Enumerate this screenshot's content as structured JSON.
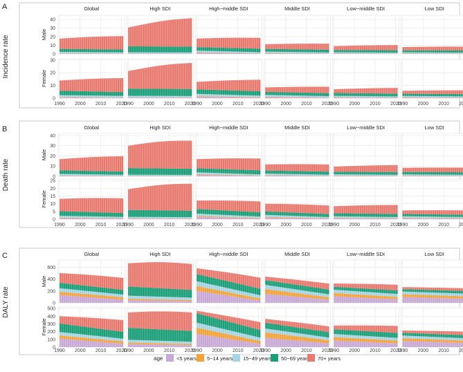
{
  "figure": {
    "x_ticks": [
      1990,
      2000,
      2010,
      2020
    ],
    "strip_labels": [
      "Global",
      "High SDI",
      "High−middle SDI",
      "Middle SDI",
      "Low−middle SDI",
      "Low SDI"
    ],
    "sex_labels": [
      "Male",
      "Female"
    ]
  },
  "legend": {
    "title": "age",
    "entries": [
      {
        "label": "<5 years",
        "color": "#C8A9D6"
      },
      {
        "label": "5−14 years",
        "color": "#F2A33A"
      },
      {
        "label": "15−49 years",
        "color": "#A6D4E3"
      },
      {
        "label": "50−69 years",
        "color": "#1A9E77"
      },
      {
        "label": "70+ years",
        "color": "#E8796F"
      }
    ]
  },
  "chart_data": [
    {
      "type": "bar",
      "stacked": true,
      "panel_letter": "A",
      "ylabel": "Incidence rate",
      "x": [
        1990,
        2021
      ],
      "male": {
        "y_ticks": [
          0,
          10,
          20,
          30,
          40
        ],
        "ylim": [
          0,
          45
        ],
        "regions": [
          {
            "name": "Global",
            "s": [
              [
                0.6,
                0.4
              ],
              [
                0.3,
                0.2
              ],
              [
                1.5,
                1.2
              ],
              [
                3.5,
                3.4
              ],
              [
                12,
                15.5
              ]
            ]
          },
          {
            "name": "High SDI",
            "s": [
              [
                0.5,
                0.4
              ],
              [
                0.2,
                0.2
              ],
              [
                1.2,
                1.1
              ],
              [
                7,
                6.8
              ],
              [
                22,
                33
              ]
            ]
          },
          {
            "name": "High−middle SDI",
            "s": [
              [
                1.5,
                0.5
              ],
              [
                0.6,
                0.3
              ],
              [
                1.8,
                1.2
              ],
              [
                4,
                4.2
              ],
              [
                10,
                12.5
              ]
            ]
          },
          {
            "name": "Middle SDI",
            "s": [
              [
                0.8,
                0.4
              ],
              [
                0.4,
                0.2
              ],
              [
                1.5,
                1.1
              ],
              [
                3.2,
                3.2
              ],
              [
                5.5,
                7
              ]
            ]
          },
          {
            "name": "Low−middle SDI",
            "s": [
              [
                0.5,
                0.3
              ],
              [
                0.3,
                0.2
              ],
              [
                1.2,
                1.0
              ],
              [
                2.6,
                2.8
              ],
              [
                4.5,
                6
              ]
            ]
          },
          {
            "name": "Low SDI",
            "s": [
              [
                0.5,
                0.3
              ],
              [
                0.3,
                0.2
              ],
              [
                1.1,
                1.0
              ],
              [
                2.4,
                2.5
              ],
              [
                3.7,
                4.5
              ]
            ]
          }
        ]
      },
      "female": {
        "y_ticks": [
          0,
          10,
          20,
          30
        ],
        "ylim": [
          0,
          31
        ],
        "regions": [
          {
            "name": "Global",
            "s": [
              [
                0.6,
                0.4
              ],
              [
                0.3,
                0.2
              ],
              [
                1.5,
                1.2
              ],
              [
                3.5,
                3.0
              ],
              [
                8,
                11
              ]
            ]
          },
          {
            "name": "High SDI",
            "s": [
              [
                0.5,
                0.4
              ],
              [
                0.2,
                0.2
              ],
              [
                1.2,
                1.1
              ],
              [
                5.6,
                5.5
              ],
              [
                14,
                20.5
              ]
            ]
          },
          {
            "name": "High−middle SDI",
            "s": [
              [
                1.2,
                0.5
              ],
              [
                0.5,
                0.3
              ],
              [
                1.7,
                1.2
              ],
              [
                3.5,
                3.5
              ],
              [
                6,
                9
              ]
            ]
          },
          {
            "name": "Middle SDI",
            "s": [
              [
                0.8,
                0.4
              ],
              [
                0.4,
                0.2
              ],
              [
                1.4,
                1.0
              ],
              [
                2.4,
                2.4
              ],
              [
                3.5,
                5
              ]
            ]
          },
          {
            "name": "Low−middle SDI",
            "s": [
              [
                0.5,
                0.3
              ],
              [
                0.3,
                0.2
              ],
              [
                1.1,
                0.9
              ],
              [
                2.2,
                2.2
              ],
              [
                3,
                4.5
              ]
            ]
          },
          {
            "name": "Low SDI",
            "s": [
              [
                0.5,
                0.3
              ],
              [
                0.3,
                0.2
              ],
              [
                1.0,
                0.9
              ],
              [
                1.7,
                1.8
              ],
              [
                2.3,
                3
              ]
            ]
          }
        ]
      }
    },
    {
      "type": "bar",
      "stacked": true,
      "panel_letter": "B",
      "ylabel": "Death rate",
      "x": [
        1990,
        2021
      ],
      "male": {
        "y_ticks": [
          0,
          10,
          20,
          30,
          40
        ],
        "ylim": [
          0,
          42
        ],
        "regions": [
          {
            "name": "Global",
            "s": [
              [
                0.6,
                0.3
              ],
              [
                0.3,
                0.2
              ],
              [
                1.5,
                1.0
              ],
              [
                3.5,
                3.2
              ],
              [
                11,
                15
              ]
            ]
          },
          {
            "name": "High SDI",
            "s": [
              [
                0.4,
                0.3
              ],
              [
                0.2,
                0.2
              ],
              [
                1.0,
                0.9
              ],
              [
                6.5,
                6
              ],
              [
                22,
                27.5
              ]
            ]
          },
          {
            "name": "High−middle SDI",
            "s": [
              [
                1.5,
                0.5
              ],
              [
                0.6,
                0.3
              ],
              [
                1.8,
                1.1
              ],
              [
                4,
                4
              ],
              [
                9,
                11.5
              ]
            ]
          },
          {
            "name": "Middle SDI",
            "s": [
              [
                0.8,
                0.4
              ],
              [
                0.4,
                0.2
              ],
              [
                1.5,
                1.0
              ],
              [
                3,
                3
              ],
              [
                6,
                7
              ]
            ]
          },
          {
            "name": "Low−middle SDI",
            "s": [
              [
                0.5,
                0.3
              ],
              [
                0.3,
                0.2
              ],
              [
                1.2,
                1.0
              ],
              [
                2.5,
                2.7
              ],
              [
                5,
                6.8
              ]
            ]
          },
          {
            "name": "Low SDI",
            "s": [
              [
                0.5,
                0.3
              ],
              [
                0.3,
                0.2
              ],
              [
                1.1,
                1.0
              ],
              [
                2.4,
                2.5
              ],
              [
                4,
                4.5
              ]
            ]
          }
        ]
      },
      "female": {
        "y_ticks": [
          0,
          5,
          10,
          15,
          20,
          25
        ],
        "ylim": [
          0,
          26
        ],
        "regions": [
          {
            "name": "Global",
            "s": [
              [
                0.7,
                0.4
              ],
              [
                0.3,
                0.2
              ],
              [
                1.2,
                0.9
              ],
              [
                3,
                2.5
              ],
              [
                8,
                9.5
              ]
            ]
          },
          {
            "name": "High SDI",
            "s": [
              [
                0.4,
                0.3
              ],
              [
                0.2,
                0.2
              ],
              [
                0.9,
                0.8
              ],
              [
                4.5,
                4.2
              ],
              [
                13.5,
                17.5
              ]
            ]
          },
          {
            "name": "High−middle SDI",
            "s": [
              [
                1.5,
                0.5
              ],
              [
                0.6,
                0.3
              ],
              [
                1.5,
                0.9
              ],
              [
                3,
                2.8
              ],
              [
                5.5,
                7
              ]
            ]
          },
          {
            "name": "Middle SDI",
            "s": [
              [
                1.0,
                0.4
              ],
              [
                0.5,
                0.2
              ],
              [
                1.3,
                0.8
              ],
              [
                2.2,
                2
              ],
              [
                5,
                5.5
              ]
            ]
          },
          {
            "name": "Low−middle SDI",
            "s": [
              [
                0.6,
                0.4
              ],
              [
                0.3,
                0.2
              ],
              [
                1.0,
                0.8
              ],
              [
                2,
                2
              ],
              [
                4.5,
                5.8
              ]
            ]
          },
          {
            "name": "Low SDI",
            "s": [
              [
                0.6,
                0.4
              ],
              [
                0.3,
                0.2
              ],
              [
                1.0,
                0.8
              ],
              [
                1.5,
                1.5
              ],
              [
                2.3,
                2.8
              ]
            ]
          }
        ]
      }
    },
    {
      "type": "bar",
      "stacked": true,
      "panel_letter": "C",
      "ylabel": "DALY rate",
      "x": [
        1990,
        2021
      ],
      "male": {
        "y_ticks": [
          0,
          200,
          400,
          600
        ],
        "ylim": [
          0,
          720
        ],
        "regions": [
          {
            "name": "Global",
            "s": [
              [
                130,
                55
              ],
              [
                55,
                40
              ],
              [
                60,
                45
              ],
              [
                90,
                80
              ],
              [
                165,
                200
              ]
            ]
          },
          {
            "name": "High SDI",
            "s": [
              [
                45,
                30
              ],
              [
                25,
                18
              ],
              [
                50,
                40
              ],
              [
                155,
                130
              ],
              [
                390,
                435
              ]
            ]
          },
          {
            "name": "High−middle SDI",
            "s": [
              [
                200,
                40
              ],
              [
                80,
                35
              ],
              [
                80,
                55
              ],
              [
                120,
                110
              ],
              [
                100,
                185
              ]
            ]
          },
          {
            "name": "Middle SDI",
            "s": [
              [
                150,
                55
              ],
              [
                80,
                40
              ],
              [
                70,
                50
              ],
              [
                80,
                80
              ],
              [
                60,
                100
              ]
            ]
          },
          {
            "name": "Low−middle SDI",
            "s": [
              [
                110,
                60
              ],
              [
                55,
                40
              ],
              [
                55,
                50
              ],
              [
                50,
                60
              ],
              [
                55,
                95
              ]
            ]
          },
          {
            "name": "Low SDI",
            "s": [
              [
                100,
                70
              ],
              [
                45,
                40
              ],
              [
                45,
                45
              ],
              [
                40,
                45
              ],
              [
                35,
                45
              ]
            ]
          }
        ]
      },
      "female": {
        "y_ticks": [
          0,
          100,
          200,
          300,
          400,
          500
        ],
        "ylim": [
          0,
          520
        ],
        "regions": [
          {
            "name": "Global",
            "s": [
              [
                110,
                45
              ],
              [
                40,
                30
              ],
              [
                45,
                35
              ],
              [
                110,
                90
              ],
              [
                95,
                150
              ]
            ]
          },
          {
            "name": "High SDI",
            "s": [
              [
                40,
                25
              ],
              [
                20,
                15
              ],
              [
                35,
                30
              ],
              [
                155,
                140
              ],
              [
                200,
                240
              ]
            ]
          },
          {
            "name": "High−middle SDI",
            "s": [
              [
                170,
                45
              ],
              [
                80,
                35
              ],
              [
                65,
                45
              ],
              [
                120,
                100
              ],
              [
                35,
                100
              ]
            ]
          },
          {
            "name": "Middle SDI",
            "s": [
              [
                120,
                50
              ],
              [
                70,
                40
              ],
              [
                50,
                35
              ],
              [
                75,
                70
              ],
              [
                50,
                75
              ]
            ]
          },
          {
            "name": "Low−middle SDI",
            "s": [
              [
                85,
                50
              ],
              [
                45,
                35
              ],
              [
                40,
                35
              ],
              [
                60,
                65
              ],
              [
                50,
                90
              ]
            ]
          },
          {
            "name": "Low SDI",
            "s": [
              [
                80,
                55
              ],
              [
                35,
                30
              ],
              [
                35,
                30
              ],
              [
                35,
                40
              ],
              [
                30,
                45
              ]
            ]
          }
        ]
      }
    }
  ]
}
